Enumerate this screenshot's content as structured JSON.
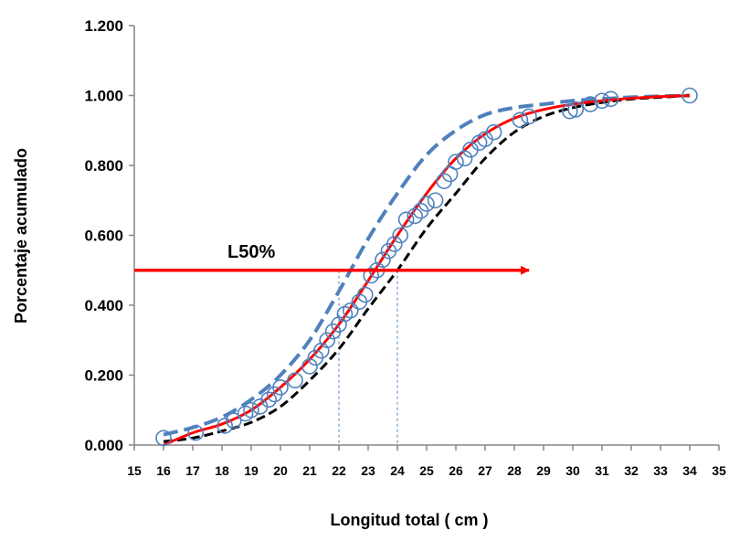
{
  "chart_data": {
    "type": "scatter",
    "xlabel": "Longitud total ( cm )",
    "ylabel": "Porcentaje acumulado",
    "xlim": [
      15,
      35
    ],
    "ylim": [
      0,
      1.2
    ],
    "x_ticks": [
      "15",
      "16",
      "17",
      "18",
      "19",
      "20",
      "21",
      "22",
      "23",
      "24",
      "25",
      "26",
      "27",
      "28",
      "29",
      "30",
      "31",
      "32",
      "33",
      "34",
      "35"
    ],
    "y_ticks": [
      "0.000",
      "0.200",
      "0.400",
      "0.600",
      "0.800",
      "1.000",
      "1.200"
    ],
    "grid": false,
    "legend": "none",
    "annotation": {
      "text": "L50%",
      "y": 0.5,
      "arrow_x_range": [
        15,
        28.5
      ]
    },
    "guide_lines": [
      22,
      24
    ],
    "colors": {
      "observed": "#4F81BD",
      "fit": "#FF0000",
      "upper": "#4F81BD",
      "lower": "#000000",
      "arrow": "#FF0000"
    },
    "series": [
      {
        "style": "open-circle markers",
        "points": [
          [
            16,
            0.02
          ],
          [
            17.1,
            0.035
          ],
          [
            18.1,
            0.055
          ],
          [
            18.4,
            0.07
          ],
          [
            18.8,
            0.09
          ],
          [
            19.0,
            0.1
          ],
          [
            19.3,
            0.11
          ],
          [
            19.6,
            0.13
          ],
          [
            19.8,
            0.145
          ],
          [
            20.0,
            0.165
          ],
          [
            20.5,
            0.185
          ],
          [
            21.0,
            0.225
          ],
          [
            21.2,
            0.25
          ],
          [
            21.4,
            0.27
          ],
          [
            21.6,
            0.3
          ],
          [
            21.8,
            0.325
          ],
          [
            22.0,
            0.345
          ],
          [
            22.2,
            0.375
          ],
          [
            22.4,
            0.385
          ],
          [
            22.7,
            0.41
          ],
          [
            22.9,
            0.43
          ],
          [
            23.1,
            0.485
          ],
          [
            23.3,
            0.5
          ],
          [
            23.5,
            0.53
          ],
          [
            23.7,
            0.555
          ],
          [
            23.9,
            0.575
          ],
          [
            24.1,
            0.6
          ],
          [
            24.3,
            0.645
          ],
          [
            24.6,
            0.655
          ],
          [
            24.8,
            0.67
          ],
          [
            25.0,
            0.69
          ],
          [
            25.3,
            0.7
          ],
          [
            25.6,
            0.755
          ],
          [
            25.8,
            0.775
          ],
          [
            26.0,
            0.81
          ],
          [
            26.3,
            0.82
          ],
          [
            26.5,
            0.845
          ],
          [
            26.8,
            0.865
          ],
          [
            27.0,
            0.875
          ],
          [
            27.3,
            0.895
          ],
          [
            28.2,
            0.93
          ],
          [
            28.5,
            0.94
          ],
          [
            29.9,
            0.955
          ],
          [
            30.1,
            0.96
          ],
          [
            30.6,
            0.975
          ],
          [
            31.0,
            0.985
          ],
          [
            31.3,
            0.99
          ],
          [
            34.0,
            1.0
          ]
        ]
      },
      {
        "style": "solid red line",
        "points": [
          [
            16,
            0.0
          ],
          [
            17,
            0.035
          ],
          [
            18,
            0.06
          ],
          [
            19,
            0.1
          ],
          [
            20,
            0.165
          ],
          [
            21,
            0.245
          ],
          [
            22,
            0.345
          ],
          [
            23,
            0.47
          ],
          [
            24,
            0.6
          ],
          [
            25,
            0.72
          ],
          [
            26,
            0.82
          ],
          [
            27,
            0.89
          ],
          [
            28,
            0.935
          ],
          [
            29,
            0.96
          ],
          [
            30,
            0.975
          ],
          [
            31,
            0.985
          ],
          [
            32,
            0.992
          ],
          [
            33,
            0.997
          ],
          [
            34,
            1.0
          ]
        ]
      },
      {
        "style": "blue dashed line",
        "points": [
          [
            16,
            0.03
          ],
          [
            17,
            0.05
          ],
          [
            18,
            0.08
          ],
          [
            19,
            0.13
          ],
          [
            20,
            0.2
          ],
          [
            21,
            0.3
          ],
          [
            22,
            0.44
          ],
          [
            23,
            0.59
          ],
          [
            24,
            0.72
          ],
          [
            25,
            0.83
          ],
          [
            26,
            0.9
          ],
          [
            27,
            0.945
          ],
          [
            28,
            0.965
          ],
          [
            29,
            0.975
          ],
          [
            30,
            0.985
          ],
          [
            31,
            0.99
          ],
          [
            32,
            0.995
          ],
          [
            33,
            0.998
          ],
          [
            34,
            1.0
          ]
        ]
      },
      {
        "style": "black dashed line",
        "points": [
          [
            16,
            0.01
          ],
          [
            17,
            0.02
          ],
          [
            18,
            0.04
          ],
          [
            19,
            0.065
          ],
          [
            20,
            0.11
          ],
          [
            21,
            0.185
          ],
          [
            22,
            0.275
          ],
          [
            23,
            0.39
          ],
          [
            24,
            0.5
          ],
          [
            25,
            0.62
          ],
          [
            26,
            0.72
          ],
          [
            27,
            0.82
          ],
          [
            28,
            0.895
          ],
          [
            29,
            0.94
          ],
          [
            30,
            0.965
          ],
          [
            31,
            0.98
          ],
          [
            32,
            0.99
          ],
          [
            33,
            0.995
          ],
          [
            34,
            1.0
          ]
        ]
      }
    ]
  }
}
